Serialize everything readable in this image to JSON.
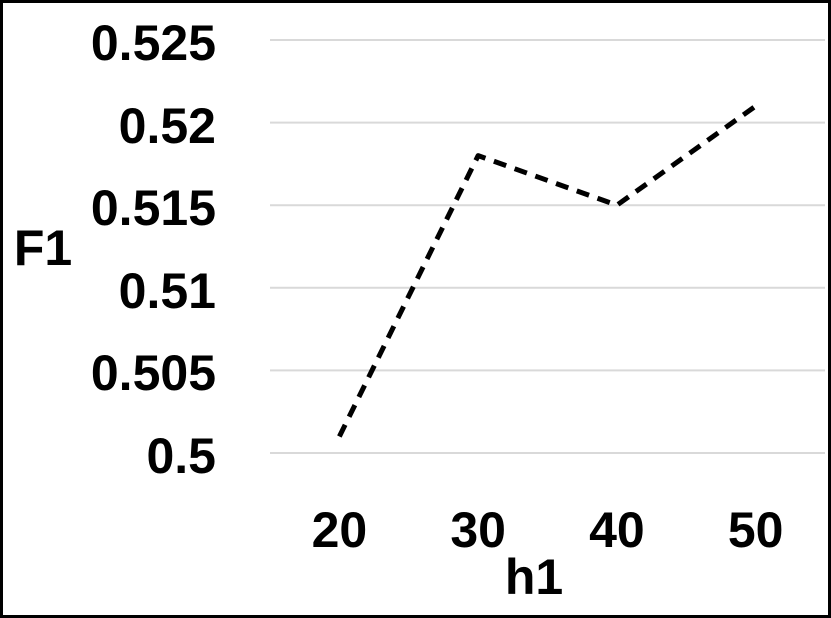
{
  "chart_data": {
    "type": "line",
    "title": "",
    "xlabel": "h1",
    "ylabel": "F1",
    "categories": [
      "20",
      "30",
      "40",
      "50"
    ],
    "series": [
      {
        "name": "F1",
        "values": [
          0.501,
          0.518,
          0.515,
          0.521
        ],
        "line_style": "dashed",
        "color": "#000000"
      }
    ],
    "ylim": [
      0.5,
      0.525
    ],
    "yticks": [
      0.5,
      0.505,
      0.51,
      0.515,
      0.52,
      0.525
    ],
    "ytick_labels": [
      "0.5",
      "0.505",
      "0.51",
      "0.515",
      "0.52",
      "0.525"
    ],
    "grid": "horizontal",
    "gridline_color": "#d9d9d9",
    "background_color": "#ffffff",
    "frame_border_color": "#000000",
    "legend": "none",
    "markers": "none"
  }
}
